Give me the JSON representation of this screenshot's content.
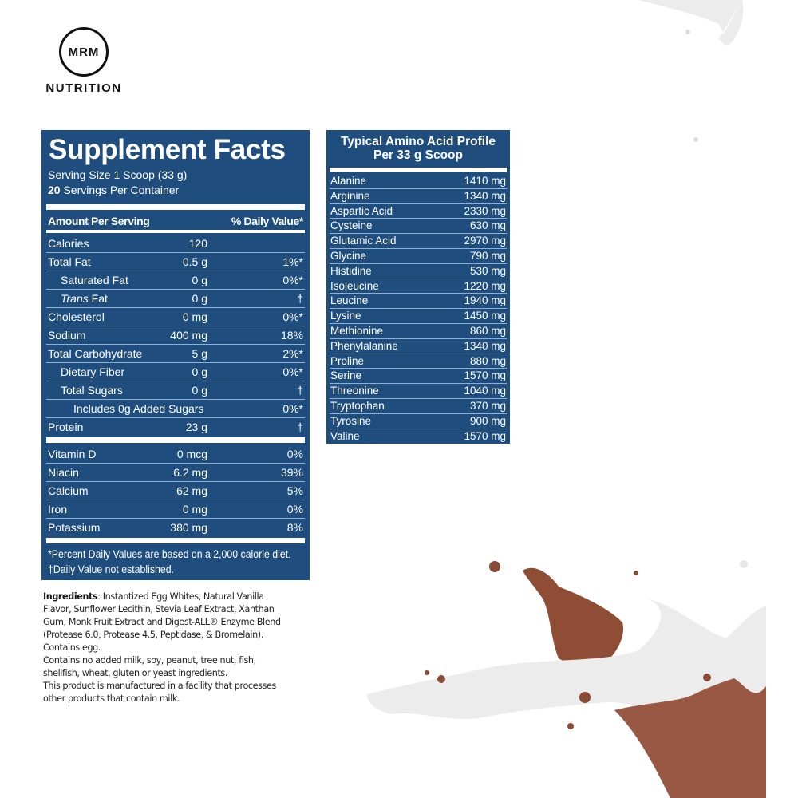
{
  "brand": {
    "logo_mark": "MRM",
    "name": "NUTRITION"
  },
  "supplement_facts": {
    "title": "Supplement Facts",
    "serving_size": "Serving Size 1 Scoop (33 g)",
    "servings_count": "20",
    "servings_label": " Servings Per Container",
    "header_amount": "Amount Per Serving",
    "header_dv": "% Daily Value*",
    "rows": [
      {
        "name": "Calories",
        "amount": "120",
        "dv": "",
        "indent": 0
      },
      {
        "name": "Total Fat",
        "amount": "0.5 g",
        "dv": "1%*",
        "indent": 0
      },
      {
        "name": "Saturated Fat",
        "amount": "0 g",
        "dv": "0%*",
        "indent": 1
      },
      {
        "name_italic": "Trans",
        "name": " Fat",
        "amount": "0 g",
        "dv": "†",
        "indent": 1
      },
      {
        "name": "Cholesterol",
        "amount": "0 mg",
        "dv": "0%*",
        "indent": 0
      },
      {
        "name": "Sodium",
        "amount": "400 mg",
        "dv": "18%",
        "indent": 0
      },
      {
        "name": "Total Carbohydrate",
        "amount": "5 g",
        "dv": "2%*",
        "indent": 0
      },
      {
        "name": "Dietary Fiber",
        "amount": "0 g",
        "dv": "0%*",
        "indent": 1
      },
      {
        "name": "Total Sugars",
        "amount": "0 g",
        "dv": "†",
        "indent": 1
      },
      {
        "name": "Includes 0g Added Sugars",
        "amount": "",
        "dv": "0%*",
        "indent": 2
      },
      {
        "name": "Protein",
        "amount": "23 g",
        "dv": "†",
        "indent": 0
      }
    ],
    "vitamins": [
      {
        "name": "Vitamin D",
        "amount": "0 mcg",
        "dv": "0%"
      },
      {
        "name": "Niacin",
        "amount": "6.2 mg",
        "dv": "39%"
      },
      {
        "name": "Calcium",
        "amount": "62 mg",
        "dv": "5%"
      },
      {
        "name": "Iron",
        "amount": "0 mg",
        "dv": "0%"
      },
      {
        "name": "Potassium",
        "amount": "380 mg",
        "dv": "8%"
      }
    ],
    "footnote_1": "*Percent Daily Values are based on a 2,000 calorie diet.",
    "footnote_2": "†Daily Value not established."
  },
  "amino_profile": {
    "title_line1": "Typical Amino Acid Profile",
    "title_line2": "Per 33 g Scoop",
    "rows": [
      {
        "name": "Alanine",
        "amount": "1410 mg"
      },
      {
        "name": "Arginine",
        "amount": "1340 mg"
      },
      {
        "name": "Aspartic Acid",
        "amount": "2330 mg"
      },
      {
        "name": "Cysteine",
        "amount": "630 mg"
      },
      {
        "name": "Glutamic Acid",
        "amount": "2970 mg"
      },
      {
        "name": "Glycine",
        "amount": "790 mg"
      },
      {
        "name": "Histidine",
        "amount": "530 mg"
      },
      {
        "name": "Isoleucine",
        "amount": "1220 mg"
      },
      {
        "name": "Leucine",
        "amount": "1940 mg"
      },
      {
        "name": "Lysine",
        "amount": "1450 mg"
      },
      {
        "name": "Methionine",
        "amount": "860 mg"
      },
      {
        "name": "Phenylalanine",
        "amount": "1340 mg"
      },
      {
        "name": "Proline",
        "amount": "880 mg"
      },
      {
        "name": "Serine",
        "amount": "1570 mg"
      },
      {
        "name": "Threonine",
        "amount": "1040 mg"
      },
      {
        "name": "Tryptophan",
        "amount": "370 mg"
      },
      {
        "name": "Tyrosine",
        "amount": "900 mg"
      },
      {
        "name": "Valine",
        "amount": "1570 mg"
      }
    ]
  },
  "ingredients": {
    "label": "Ingredients",
    "text": ": Instantized Egg Whites, Natural Vanilla Flavor, Sunflower Lecithin, Stevia Leaf Extract, Xanthan Gum, Monk Fruit Extract and Digest-ALL® Enzyme Blend (Protease 6.0, Protease 4.5, Peptidase, & Bromelain).",
    "contains": "Contains egg.",
    "allergen": "Contains no added milk, soy, peanut, tree nut, fish, shellfish, wheat, gluten or yeast ingredients.",
    "facility": "This product is manufactured in a facility that processes other products that contain milk."
  },
  "colors": {
    "panel": "#1f4e7e",
    "chocolate": "#8a4a35",
    "milk": "#eeeeee"
  }
}
